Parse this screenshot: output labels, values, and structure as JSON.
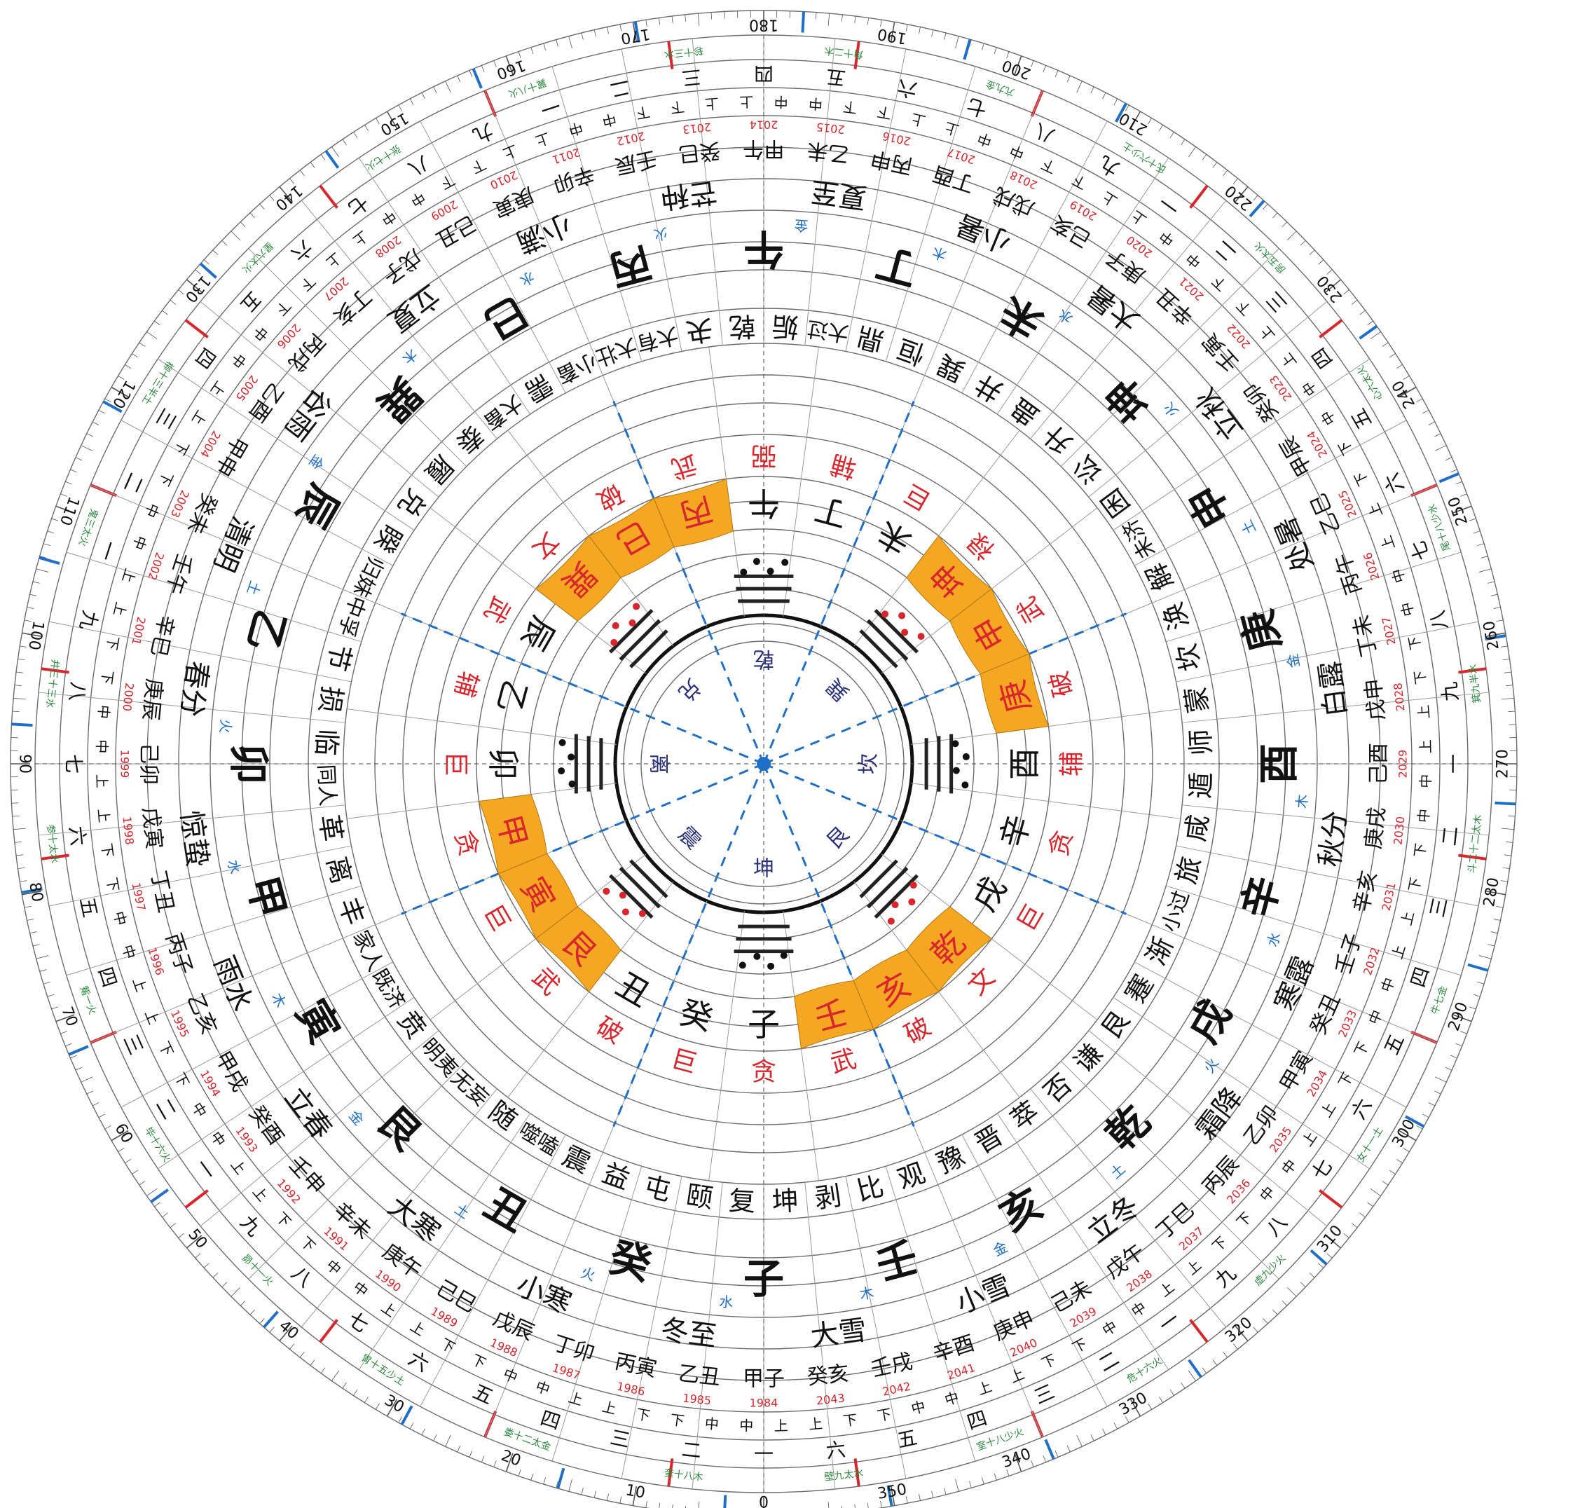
{
  "colors": {
    "ink": "#111111",
    "red": "#d8262c",
    "blue": "#1f6fc7",
    "green": "#2b8a3e",
    "orange_highlight": "#f5a623",
    "navy": "#2a2f7a",
    "grid": "#8a8a8a"
  },
  "degree_ring": {
    "labels": [
      "0",
      "10",
      "20",
      "30",
      "40",
      "50",
      "60",
      "70",
      "80",
      "90",
      "100",
      "110",
      "120",
      "130",
      "140",
      "150",
      "160",
      "170",
      "180",
      "190",
      "200",
      "210",
      "220",
      "230",
      "240",
      "250",
      "260",
      "270",
      "280",
      "290",
      "300",
      "310",
      "320",
      "330",
      "340",
      "350"
    ]
  },
  "center": {
    "trigrams": [
      "乾",
      "巽",
      "坎",
      "艮",
      "坤",
      "震",
      "离",
      "兑"
    ]
  },
  "mountains_24": {
    "inner": [
      "午",
      "丁",
      "未",
      "坤",
      "申",
      "庚",
      "酉",
      "辛",
      "戌",
      "乾",
      "亥",
      "壬",
      "子",
      "癸",
      "丑",
      "艮",
      "寅",
      "甲",
      "卯",
      "乙",
      "辰",
      "巽",
      "巳",
      "丙"
    ],
    "highlighted": [
      "坤",
      "申",
      "庚",
      "乾",
      "亥",
      "壬",
      "艮",
      "寅",
      "甲",
      "巽",
      "巳",
      "丙"
    ],
    "stars": [
      "弼",
      "辅",
      "巨",
      "禄",
      "武",
      "破",
      "辅",
      "贪",
      "巨",
      "文",
      "破",
      "武",
      "贪",
      "巨",
      "破",
      "武",
      "巨",
      "贪",
      "巨",
      "辅",
      "武",
      "文",
      "破",
      "武"
    ]
  },
  "hexagrams": [
    "姤",
    "大过",
    "鼎",
    "恒",
    "巽",
    "井",
    "蛊",
    "升",
    "讼",
    "困",
    "未济",
    "解",
    "涣",
    "坎",
    "蒙",
    "师",
    "遁",
    "咸",
    "旅",
    "小过",
    "渐",
    "蹇",
    "艮",
    "谦",
    "否",
    "萃",
    "晋",
    "豫",
    "观",
    "比",
    "剥",
    "坤",
    "复",
    "颐",
    "屯",
    "益",
    "震",
    "噬嗑",
    "随",
    "无妄",
    "明夷",
    "贲",
    "既济",
    "家人",
    "丰",
    "离",
    "革",
    "同人",
    "临",
    "损",
    "节",
    "中孚",
    "归妹",
    "睽",
    "兑",
    "履",
    "泰",
    "大畜",
    "需",
    "小畜",
    "大壮",
    "大有",
    "夬",
    "乾"
  ],
  "solar_terms": [
    "夏至",
    "小暑",
    "大暑",
    "立秋",
    "处暑",
    "白露",
    "秋分",
    "寒露",
    "霜降",
    "立冬",
    "小雪",
    "大雪",
    "冬至",
    "小寒",
    "大寒",
    "立春",
    "雨水",
    "惊蛰",
    "春分",
    "清明",
    "谷雨",
    "立夏",
    "小满",
    "芒种"
  ],
  "years": {
    "cycle": [
      "甲子",
      "乙丑",
      "丙寅",
      "丁卯",
      "戊辰",
      "己巳",
      "庚午",
      "辛未",
      "壬申",
      "癸酉",
      "甲戌",
      "乙亥",
      "丙子",
      "丁丑",
      "戊寅",
      "己卯",
      "庚辰",
      "辛巳",
      "壬午",
      "癸未",
      "甲申",
      "乙酉",
      "丙戌",
      "丁亥",
      "戊子",
      "己丑",
      "庚寅",
      "辛卯",
      "壬辰",
      "癸巳",
      "甲午",
      "乙未",
      "丙申",
      "丁酉",
      "戊戌",
      "己亥",
      "庚子",
      "辛丑",
      "壬寅",
      "癸卯",
      "甲辰",
      "乙巳",
      "丙午",
      "丁未",
      "戊申",
      "己酉",
      "庚戌",
      "辛亥",
      "壬子",
      "癸丑",
      "甲寅",
      "乙卯",
      "丙辰",
      "丁巳",
      "戊午",
      "己未",
      "庚申",
      "辛酉",
      "壬戌",
      "癸亥"
    ],
    "numbers": [
      "1984",
      "1985",
      "1986",
      "1987",
      "1988",
      "1989",
      "1990",
      "1991",
      "1992",
      "1993",
      "1994",
      "1995",
      "1996",
      "1997",
      "1998",
      "1999",
      "2000",
      "2001",
      "2002",
      "2003",
      "2004",
      "2005",
      "2006",
      "2007",
      "2008",
      "2009",
      "2010",
      "2011",
      "2012",
      "2013",
      "2014",
      "2015",
      "2016",
      "2017",
      "2018",
      "2019",
      "2020",
      "2021",
      "2022",
      "2023",
      "2024",
      "2025",
      "2026",
      "2027",
      "2028",
      "2029",
      "2030",
      "2031",
      "2032",
      "2033",
      "2034",
      "2035",
      "2036",
      "2037",
      "2038",
      "2039",
      "2040",
      "2041",
      "2042",
      "2043"
    ]
  },
  "outer_numbers": [
    "一",
    "二",
    "三",
    "四",
    "五",
    "六",
    "七",
    "八",
    "九"
  ],
  "yuan_labels": [
    "上",
    "中",
    "下"
  ],
  "lunar_mansions": [
    "角十二木",
    "亢九金",
    "氐十六少土",
    "房五太火",
    "心六太火",
    "尾十八少水",
    "箕九半水",
    "斗二十二太木",
    "牛七金",
    "女十一土",
    "虚九少火",
    "危十六火",
    "室十八少火",
    "壁九太水",
    "奎十八木",
    "娄十二太金",
    "胃十五少土",
    "昴十一火",
    "毕十六火",
    "觜一火",
    "参十太水",
    "井三十三水",
    "鬼三太火",
    "柳十三半土",
    "星六太火",
    "张十七火",
    "翼十八火",
    "轸十三水"
  ],
  "elements": [
    "金",
    "木",
    "水",
    "火",
    "土"
  ]
}
